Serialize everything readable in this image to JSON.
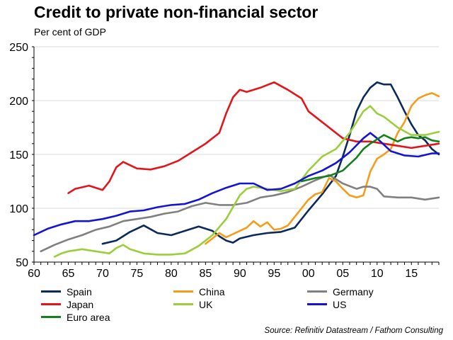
{
  "title": "Credit to private non-financial sector",
  "subtitle": "Per cent of GDP",
  "source": "Source: Refinitiv Datastream / Fathom Consulting",
  "chart_data": {
    "type": "line",
    "xlim": [
      1960,
      2019
    ],
    "ylim": [
      50,
      250
    ],
    "yticks": [
      50,
      100,
      150,
      200,
      250
    ],
    "xticks": [
      1960,
      1965,
      1970,
      1975,
      1980,
      1985,
      1990,
      1995,
      2000,
      2005,
      2010,
      2015
    ],
    "xtick_labels": [
      "60",
      "65",
      "70",
      "75",
      "80",
      "85",
      "90",
      "95",
      "00",
      "05",
      "10",
      "15"
    ],
    "ytick_labels": [
      "50",
      "100",
      "150",
      "200",
      "250"
    ],
    "grid": "horizontal",
    "legend": "bottom",
    "series": [
      {
        "name": "Spain",
        "color": "#0b2a5b",
        "points": [
          [
            1970,
            67
          ],
          [
            1972,
            70
          ],
          [
            1974,
            78
          ],
          [
            1976,
            84
          ],
          [
            1978,
            77
          ],
          [
            1980,
            75
          ],
          [
            1982,
            79
          ],
          [
            1984,
            83
          ],
          [
            1986,
            79
          ],
          [
            1987,
            74
          ],
          [
            1988,
            70
          ],
          [
            1989,
            68
          ],
          [
            1990,
            72
          ],
          [
            1992,
            75
          ],
          [
            1994,
            77
          ],
          [
            1996,
            78
          ],
          [
            1998,
            82
          ],
          [
            2000,
            98
          ],
          [
            2002,
            113
          ],
          [
            2004,
            130
          ],
          [
            2005,
            148
          ],
          [
            2006,
            168
          ],
          [
            2007,
            190
          ],
          [
            2008,
            203
          ],
          [
            2009,
            212
          ],
          [
            2010,
            217
          ],
          [
            2011,
            215
          ],
          [
            2012,
            215
          ],
          [
            2013,
            203
          ],
          [
            2014,
            190
          ],
          [
            2015,
            178
          ],
          [
            2016,
            168
          ],
          [
            2017,
            163
          ],
          [
            2018,
            155
          ],
          [
            2019,
            150
          ]
        ]
      },
      {
        "name": "China",
        "color": "#f59c1a",
        "points": [
          [
            1985,
            67
          ],
          [
            1986,
            72
          ],
          [
            1987,
            77
          ],
          [
            1988,
            73
          ],
          [
            1990,
            79
          ],
          [
            1991,
            82
          ],
          [
            1992,
            88
          ],
          [
            1993,
            83
          ],
          [
            1994,
            87
          ],
          [
            1995,
            80
          ],
          [
            1996,
            81
          ],
          [
            1997,
            84
          ],
          [
            1998,
            92
          ],
          [
            1999,
            100
          ],
          [
            2000,
            108
          ],
          [
            2001,
            113
          ],
          [
            2002,
            115
          ],
          [
            2003,
            128
          ],
          [
            2004,
            125
          ],
          [
            2005,
            118
          ],
          [
            2006,
            112
          ],
          [
            2007,
            110
          ],
          [
            2008,
            112
          ],
          [
            2009,
            134
          ],
          [
            2010,
            146
          ],
          [
            2011,
            150
          ],
          [
            2012,
            155
          ],
          [
            2013,
            170
          ],
          [
            2014,
            180
          ],
          [
            2015,
            195
          ],
          [
            2016,
            202
          ],
          [
            2017,
            205
          ],
          [
            2018,
            207
          ],
          [
            2019,
            204
          ]
        ]
      },
      {
        "name": "Germany",
        "color": "#808080",
        "points": [
          [
            1961,
            60
          ],
          [
            1963,
            66
          ],
          [
            1965,
            71
          ],
          [
            1967,
            75
          ],
          [
            1969,
            80
          ],
          [
            1971,
            83
          ],
          [
            1973,
            88
          ],
          [
            1975,
            90
          ],
          [
            1977,
            92
          ],
          [
            1979,
            95
          ],
          [
            1981,
            97
          ],
          [
            1983,
            102
          ],
          [
            1985,
            105
          ],
          [
            1987,
            103
          ],
          [
            1989,
            103
          ],
          [
            1991,
            105
          ],
          [
            1993,
            110
          ],
          [
            1995,
            112
          ],
          [
            1997,
            115
          ],
          [
            1999,
            120
          ],
          [
            2001,
            126
          ],
          [
            2003,
            131
          ],
          [
            2005,
            123
          ],
          [
            2007,
            118
          ],
          [
            2008,
            120
          ],
          [
            2009,
            120
          ],
          [
            2010,
            118
          ],
          [
            2011,
            111
          ],
          [
            2013,
            110
          ],
          [
            2015,
            110
          ],
          [
            2017,
            108
          ],
          [
            2019,
            110
          ]
        ]
      },
      {
        "name": "Japan",
        "color": "#e3151b",
        "points": [
          [
            1965,
            114
          ],
          [
            1966,
            118
          ],
          [
            1968,
            121
          ],
          [
            1970,
            117
          ],
          [
            1971,
            125
          ],
          [
            1972,
            138
          ],
          [
            1973,
            143
          ],
          [
            1974,
            140
          ],
          [
            1975,
            137
          ],
          [
            1977,
            136
          ],
          [
            1979,
            139
          ],
          [
            1981,
            144
          ],
          [
            1983,
            152
          ],
          [
            1985,
            160
          ],
          [
            1987,
            170
          ],
          [
            1988,
            188
          ],
          [
            1989,
            203
          ],
          [
            1990,
            210
          ],
          [
            1991,
            208
          ],
          [
            1993,
            212
          ],
          [
            1995,
            217
          ],
          [
            1997,
            210
          ],
          [
            1999,
            202
          ],
          [
            2000,
            190
          ],
          [
            2001,
            185
          ],
          [
            2003,
            175
          ],
          [
            2005,
            165
          ],
          [
            2007,
            162
          ],
          [
            2009,
            162
          ],
          [
            2011,
            160
          ],
          [
            2013,
            158
          ],
          [
            2015,
            156
          ],
          [
            2017,
            158
          ],
          [
            2019,
            160
          ]
        ]
      },
      {
        "name": "UK",
        "color": "#9bcf3a",
        "points": [
          [
            1963,
            55
          ],
          [
            1964,
            58
          ],
          [
            1965,
            60
          ],
          [
            1967,
            62
          ],
          [
            1969,
            60
          ],
          [
            1971,
            58
          ],
          [
            1972,
            63
          ],
          [
            1973,
            66
          ],
          [
            1974,
            62
          ],
          [
            1976,
            58
          ],
          [
            1978,
            57
          ],
          [
            1980,
            57
          ],
          [
            1982,
            58
          ],
          [
            1984,
            65
          ],
          [
            1986,
            75
          ],
          [
            1988,
            90
          ],
          [
            1990,
            112
          ],
          [
            1991,
            118
          ],
          [
            1992,
            120
          ],
          [
            1994,
            118
          ],
          [
            1996,
            116
          ],
          [
            1998,
            118
          ],
          [
            2000,
            135
          ],
          [
            2002,
            148
          ],
          [
            2004,
            155
          ],
          [
            2006,
            170
          ],
          [
            2007,
            180
          ],
          [
            2008,
            190
          ],
          [
            2009,
            195
          ],
          [
            2010,
            188
          ],
          [
            2011,
            185
          ],
          [
            2012,
            180
          ],
          [
            2013,
            175
          ],
          [
            2015,
            168
          ],
          [
            2017,
            168
          ],
          [
            2019,
            171
          ]
        ]
      },
      {
        "name": "US",
        "color": "#1414d2",
        "points": [
          [
            1960,
            75
          ],
          [
            1962,
            81
          ],
          [
            1964,
            85
          ],
          [
            1966,
            88
          ],
          [
            1968,
            88
          ],
          [
            1970,
            90
          ],
          [
            1972,
            93
          ],
          [
            1974,
            97
          ],
          [
            1976,
            98
          ],
          [
            1978,
            101
          ],
          [
            1980,
            103
          ],
          [
            1982,
            104
          ],
          [
            1984,
            108
          ],
          [
            1986,
            114
          ],
          [
            1988,
            119
          ],
          [
            1990,
            123
          ],
          [
            1992,
            123
          ],
          [
            1994,
            117
          ],
          [
            1996,
            118
          ],
          [
            1998,
            123
          ],
          [
            2000,
            130
          ],
          [
            2002,
            135
          ],
          [
            2004,
            142
          ],
          [
            2006,
            152
          ],
          [
            2008,
            165
          ],
          [
            2009,
            170
          ],
          [
            2010,
            165
          ],
          [
            2012,
            153
          ],
          [
            2014,
            149
          ],
          [
            2016,
            148
          ],
          [
            2018,
            151
          ],
          [
            2019,
            151
          ]
        ]
      },
      {
        "name": "Euro area",
        "color": "#15801b",
        "points": [
          [
            1999,
            125
          ],
          [
            2001,
            128
          ],
          [
            2003,
            130
          ],
          [
            2005,
            135
          ],
          [
            2007,
            147
          ],
          [
            2008,
            155
          ],
          [
            2009,
            160
          ],
          [
            2010,
            164
          ],
          [
            2011,
            168
          ],
          [
            2012,
            165
          ],
          [
            2013,
            162
          ],
          [
            2014,
            165
          ],
          [
            2015,
            166
          ],
          [
            2016,
            165
          ],
          [
            2017,
            166
          ],
          [
            2018,
            163
          ],
          [
            2019,
            162
          ]
        ]
      }
    ]
  }
}
